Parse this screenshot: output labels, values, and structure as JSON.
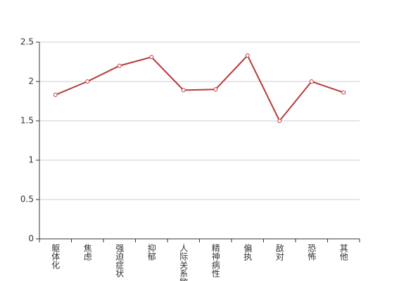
{
  "chart_data": {
    "type": "line",
    "categories": [
      "躯体化",
      "焦虑",
      "强迫症状",
      "抑郁",
      "人际关系敏感",
      "精神病性",
      "偏执",
      "敌对",
      "恐怖",
      "其他"
    ],
    "series": [
      {
        "color": "#b83b3b",
        "values": [
          1.83,
          2.0,
          2.2,
          2.31,
          1.89,
          1.9,
          2.33,
          1.5,
          2.0,
          1.86
        ]
      }
    ],
    "ylim": [
      0,
      2.5
    ],
    "yticks": [
      0,
      0.5,
      1,
      1.5,
      2,
      2.5
    ],
    "grid": true
  }
}
